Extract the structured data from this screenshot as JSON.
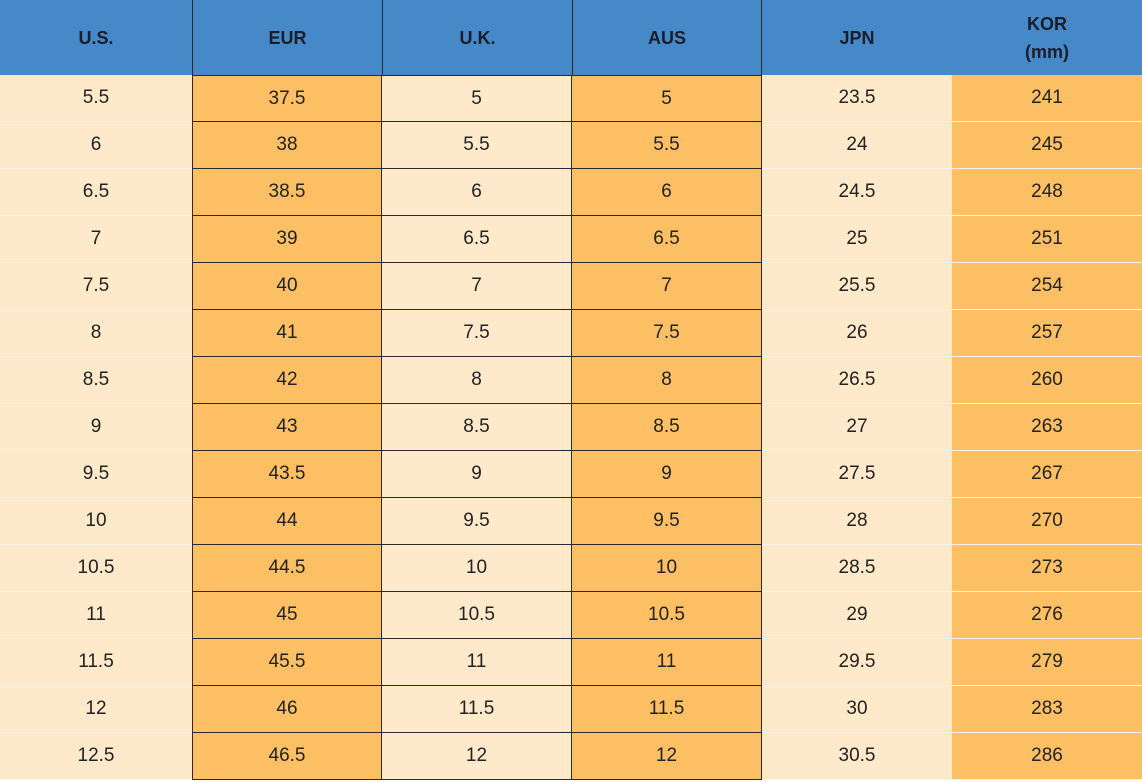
{
  "table": {
    "header": [
      "U.S.",
      "EUR",
      "U.K.",
      "AUS",
      "JPN",
      "KOR\n(mm)"
    ],
    "rows": [
      [
        5.5,
        37.5,
        5,
        5,
        23.5,
        241
      ],
      [
        6,
        38,
        5.5,
        5.5,
        24,
        245
      ],
      [
        6.5,
        38.5,
        6,
        6,
        24.5,
        248
      ],
      [
        7,
        39,
        6.5,
        6.5,
        25,
        251
      ],
      [
        7.5,
        40,
        7,
        7,
        25.5,
        254
      ],
      [
        8,
        41,
        7.5,
        7.5,
        26,
        257
      ],
      [
        8.5,
        42,
        8,
        8,
        26.5,
        260
      ],
      [
        9,
        43,
        8.5,
        8.5,
        27,
        263
      ],
      [
        9.5,
        43.5,
        9,
        9,
        27.5,
        267
      ],
      [
        10,
        44,
        9.5,
        9.5,
        28,
        270
      ],
      [
        10.5,
        44.5,
        10,
        10,
        28.5,
        273
      ],
      [
        11,
        45,
        10.5,
        10.5,
        29,
        276
      ],
      [
        11.5,
        45.5,
        11,
        11,
        29.5,
        279
      ],
      [
        12,
        46,
        11.5,
        11.5,
        30,
        283
      ],
      [
        12.5,
        46.5,
        12,
        12,
        30.5,
        286
      ]
    ]
  }
}
